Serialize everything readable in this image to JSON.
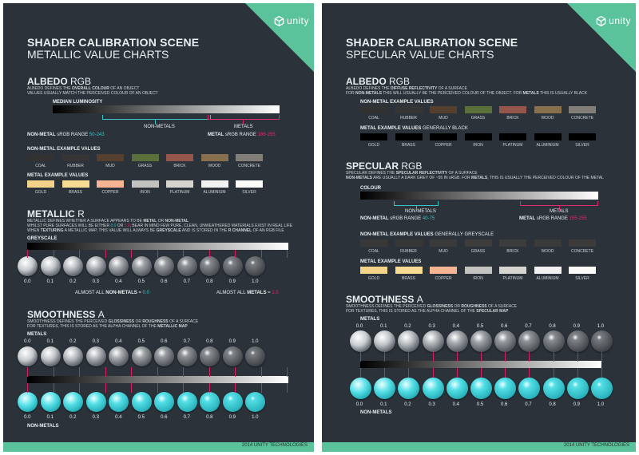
{
  "brand": {
    "name": "unity",
    "color": "#5ac39c"
  },
  "footer": "2014 UNITY TECHNOLOGIES",
  "left": {
    "title": "SHADER CALIBRATION SCENE",
    "subtitle": "METALLIC VALUE CHARTS",
    "albedo": {
      "heading": "ALBEDO",
      "heading_suffix": "RGB",
      "desc_a": "ALBEDO DEFINES THE ",
      "desc_b": "OVERALL COLOUR",
      "desc_c": " OF AN OBJECT",
      "desc_line2": "VALUES USUALLY MATCH THE PERCEIVED COLOUR OF AN OBJECT",
      "median_label": "MEDIAN LUMINOSITY",
      "nonmetals_label": "NON-METALS",
      "metals_label": "METALS",
      "nonmetal_range_label": "NON-METAL",
      "nonmetal_range_text": "sRGB RANGE",
      "nonmetal_range": "50-243",
      "metal_range_label": "METAL",
      "metal_range_text": "sRGB RANGE",
      "metal_range": "186-255",
      "nonmetal_examples_label": "NON-METAL EXAMPLE VALUES",
      "nonmetal_examples": [
        {
          "name": "COAL",
          "color": "#323232"
        },
        {
          "name": "RUBBER",
          "color": "#353535"
        },
        {
          "name": "MUD",
          "color": "#55402f"
        },
        {
          "name": "GRASS",
          "color": "#5b6f3a"
        },
        {
          "name": "BRICK",
          "color": "#94564b"
        },
        {
          "name": "WOOD",
          "color": "#88704f"
        },
        {
          "name": "CONCRETE",
          "color": "#807e76"
        }
      ],
      "metal_examples_label": "METAL EXAMPLE VALUES",
      "metal_examples": [
        {
          "name": "GOLD",
          "color": "#f3d28a"
        },
        {
          "name": "BRASS",
          "color": "#f7db92"
        },
        {
          "name": "COPPER",
          "color": "#f5b592"
        },
        {
          "name": "IRON",
          "color": "#c2c2c1"
        },
        {
          "name": "PLATINUM",
          "color": "#d6d4cf"
        },
        {
          "name": "ALUMINIUM",
          "color": "#f1f1f1"
        },
        {
          "name": "SILVER",
          "color": "#fafaf8"
        }
      ]
    },
    "metallic": {
      "heading": "METALLIC",
      "heading_suffix": "R",
      "desc_line1_a": "METALLIC DEFINES WHETHER A SURFACE APPEARS TO BE ",
      "desc_line1_b": "METAL",
      "desc_line1_c": " OR ",
      "desc_line1_d": "NON-METAL",
      "desc_line2_a": "WHILST PURE SURFACES WILL BE EITHER ",
      "desc_line2_b": "0.0",
      "desc_line2_c": " OR ",
      "desc_line2_d": "1.0",
      "desc_line2_e": ", BEAR IN MIND FEW PURE, CLEAN, UNWEATHERED MATERIALS EXIST IN REAL LIFE",
      "desc_line3_a": "WHEN ",
      "desc_line3_b": "TEXTURING",
      "desc_line3_c": " A METALLIC MAP, THIS VALUE WILL ALWAYS BE ",
      "desc_line3_d": "GREYSCALE",
      "desc_line3_e": " AND IS STORED IN THE ",
      "desc_line3_f": "R CHANNEL",
      "desc_line3_g": " OF AN RGB FILE",
      "greyscale_label": "GREYSCALE",
      "values": [
        "0.0",
        "0.1",
        "0.2",
        "0.3",
        "0.4",
        "0.5",
        "0.6",
        "0.7",
        "0.8",
        "0.9",
        "1.0"
      ],
      "almost_all_text": "ALMOST ALL",
      "nonmetals_word": "NON-METALS",
      "eq": "=",
      "nonmetal_value": "0.0",
      "metals_word": "METALS",
      "metal_value": "1.0"
    },
    "smoothness": {
      "heading": "SMOOTHNESS",
      "heading_suffix": "A",
      "desc_line1_a": "SMOOTHNESS DEFINES THE PERCEIVED ",
      "desc_line1_b": "GLOSSINESS",
      "desc_line1_c": " OR ",
      "desc_line1_d": "ROUGHNESS",
      "desc_line1_e": " OF A SURFACE",
      "desc_line2_a": "FOR TEXTURES, THIS IS STORED AS THE ALPHA CHANNEL OF THE ",
      "desc_line2_b": "METALLIC MAP",
      "metals_label": "METALS",
      "nonmetals_label": "NON-METALS",
      "values": [
        "0.0",
        "0.1",
        "0.2",
        "0.3",
        "0.4",
        "0.5",
        "0.6",
        "0.7",
        "0.8",
        "0.9",
        "1.0"
      ]
    }
  },
  "right": {
    "title": "SHADER CALIBRATION SCENE",
    "subtitle": "SPECULAR VALUE CHARTS",
    "albedo": {
      "heading": "ALBEDO",
      "heading_suffix": "RGB",
      "desc_a": "ALBEDO DEFINES THE ",
      "desc_b": "DIFFUSE REFLECTIVITY",
      "desc_c": " OF A SURFACE",
      "desc_line2_a": "FOR ",
      "desc_line2_b": "NON-METALS",
      "desc_line2_c": " THIS WILL USUALLY BE THE PERCEIVED COLOUR OF THE OBJECT. FOR ",
      "desc_line2_d": "METALS",
      "desc_line2_e": " THIS IS USUALLY BLACK",
      "nonmetal_examples_label": "NON-METAL EXAMPLE VALUES",
      "nonmetal_examples": [
        {
          "name": "COAL",
          "color": "#323232"
        },
        {
          "name": "RUBBER",
          "color": "#353535"
        },
        {
          "name": "MUD",
          "color": "#55402f"
        },
        {
          "name": "GRASS",
          "color": "#5b6f3a"
        },
        {
          "name": "BRICK",
          "color": "#94564b"
        },
        {
          "name": "WOOD",
          "color": "#88704f"
        },
        {
          "name": "CONCRETE",
          "color": "#807e76"
        }
      ],
      "metal_examples_label": "METAL EXAMPLE VALUES",
      "metal_examples_suffix": "GENERALLY BLACK",
      "metal_examples": [
        {
          "name": "GOLD",
          "color": "#000000"
        },
        {
          "name": "BRASS",
          "color": "#000000"
        },
        {
          "name": "COPPER",
          "color": "#000000"
        },
        {
          "name": "IRON",
          "color": "#000000"
        },
        {
          "name": "PLATINUM",
          "color": "#000000"
        },
        {
          "name": "ALUMINIUM",
          "color": "#000000"
        },
        {
          "name": "SILVER",
          "color": "#000000"
        }
      ]
    },
    "specular": {
      "heading": "SPECULAR",
      "heading_suffix": "RGB",
      "desc_a": "SPECULAR DEFINES THE ",
      "desc_b": "SPECULAR REFLECTIVITY",
      "desc_c": " OF A SURFACE",
      "desc_line2_a": "NON-METALS",
      "desc_line2_b": " ARE USUALLY A DARK GREY OF ~55 IN sRGB. FOR ",
      "desc_line2_c": "METALS",
      "desc_line2_d": ", THIS IS USUALLY THE PERCEIVED COLOUR OF THE METAL",
      "colour_label": "COLOUR",
      "nonmetals_label": "NON-METALS",
      "metals_label": "METALS",
      "nonmetal_range_label": "NON-METAL",
      "nonmetal_range_text": "sRGB RANGE",
      "nonmetal_range": "40-75",
      "metal_range_label": "METAL",
      "metal_range_text": "sRGB RANGE",
      "metal_range": "155-255",
      "nonmetal_examples_label": "NON-METAL EXAMPLE VALUES",
      "nonmetal_examples_suffix": "GENERALLY GREYSCALE",
      "nonmetal_examples": [
        {
          "name": "COAL",
          "color": "#383838"
        },
        {
          "name": "RUBBER",
          "color": "#373737"
        },
        {
          "name": "MUD",
          "color": "#3a3a3a"
        },
        {
          "name": "GRASS",
          "color": "#3d3d3d"
        },
        {
          "name": "BRICK",
          "color": "#3c3c3c"
        },
        {
          "name": "WOOD",
          "color": "#3a3a3a"
        },
        {
          "name": "CONCRETE",
          "color": "#3b3b3b"
        }
      ],
      "metal_examples_label": "METAL EXAMPLE VALUES",
      "metal_examples": [
        {
          "name": "GOLD",
          "color": "#f3d28a"
        },
        {
          "name": "BRASS",
          "color": "#f7db92"
        },
        {
          "name": "COPPER",
          "color": "#f5b592"
        },
        {
          "name": "IRON",
          "color": "#c2c2c1"
        },
        {
          "name": "PLATINUM",
          "color": "#d6d4cf"
        },
        {
          "name": "ALUMINIUM",
          "color": "#f1f1f1"
        },
        {
          "name": "SILVER",
          "color": "#fafaf8"
        }
      ]
    },
    "smoothness": {
      "heading": "SMOOTHNESS",
      "heading_suffix": "A",
      "desc_line1_a": "SMOOTHNESS DEFINES THE PERCEIVED ",
      "desc_line1_b": "GLOSSINESS",
      "desc_line1_c": " OR ",
      "desc_line1_d": "ROUGHNESS",
      "desc_line1_e": " OF A SURFACE",
      "desc_line2_a": "FOR TEXTURES, THIS IS STORED AS THE ALPHA CHANNEL OF THE ",
      "desc_line2_b": "SPECULAR MAP",
      "metals_label": "METALS",
      "nonmetals_label": "NON-METALS",
      "values": [
        "0.0",
        "0.1",
        "0.2",
        "0.3",
        "0.4",
        "0.5",
        "0.6",
        "0.7",
        "0.8",
        "0.9",
        "1.0"
      ]
    }
  },
  "colors": {
    "cyan": "#3bc3c9",
    "pink": "#e2296f",
    "sphere_metal": "#c7cbcf",
    "sphere_nonmetal": "#3fd4dc"
  }
}
